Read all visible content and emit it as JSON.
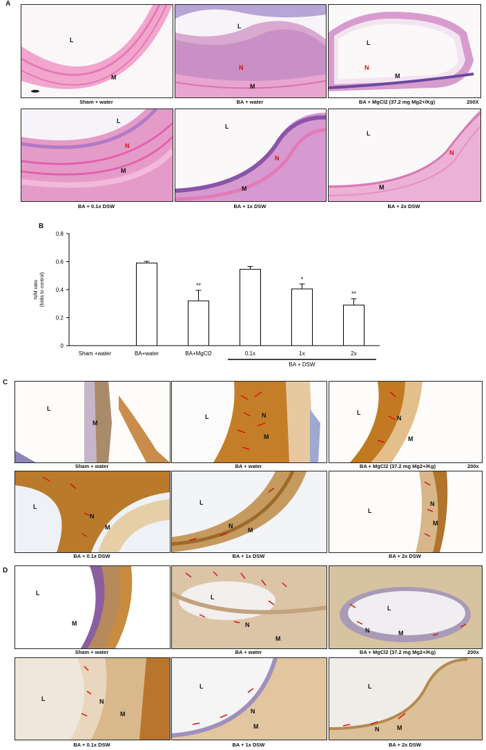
{
  "panels": {
    "A": {
      "letter": "A",
      "magnification": "200X",
      "captions": [
        "Sham + water",
        "BA + water",
        "BA + MgCl2 (37.2 mg Mg2+/Kg)",
        "BA + 0.1x DSW",
        "BA + 1x DSW",
        "BA + 2x DSW"
      ]
    },
    "B": {
      "letter": "B"
    },
    "C": {
      "letter": "C",
      "magnification": "200x",
      "captions": [
        "Sham + water",
        "BA + water",
        "BA + MgCl2 (37.2 mg Mg2+/Kg)",
        "BA + 0.1x DSW",
        "BA + 1x DSW",
        "BA + 2x DSW"
      ]
    },
    "D": {
      "letter": "D",
      "magnification": "200x",
      "captions": [
        "Sham + water",
        "BA + water",
        "BA + MgCl2 (37.2 mg Mg2+/Kg)",
        "BA + 0.1x DSW",
        "BA + 1x DSW",
        "BA + 2x DSW"
      ]
    }
  },
  "labels": {
    "L": "L",
    "M": "M",
    "N": "N"
  },
  "colors": {
    "he_pink": "#e98fc0",
    "he_purple": "#6b5aa8",
    "ihc_brown": "#b8741e",
    "ihc_tan": "#d9b27a",
    "arrow_red": "#e01010"
  },
  "chart_data": {
    "type": "bar",
    "ylabel": "N/M ratio\n(folds to control)",
    "ylim": [
      0,
      0.8
    ],
    "yticks": [
      "0",
      "0.2",
      "0.4",
      "0.6",
      "0.8"
    ],
    "categories": [
      "Sham +water",
      "BA+water",
      "BA+MgCl2",
      "0.1x",
      "1x",
      "2x"
    ],
    "values": [
      0,
      0.59,
      0.32,
      0.545,
      0.405,
      0.29
    ],
    "errors": [
      0,
      0.012,
      0.075,
      0.02,
      0.035,
      0.045
    ],
    "significance": [
      "",
      "",
      "**",
      "",
      "*",
      "**"
    ],
    "group_label": "BA + DSW",
    "group_members": [
      "0.1x",
      "1x",
      "2x"
    ]
  }
}
